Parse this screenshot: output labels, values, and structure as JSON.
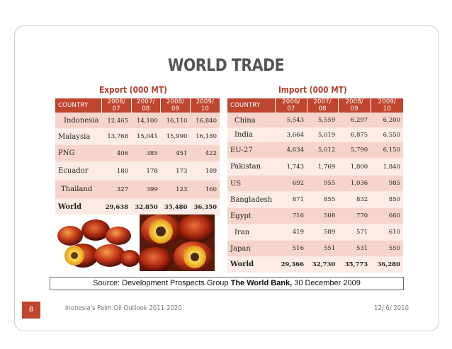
{
  "slide": {
    "title": "WORLD TRADE",
    "page_number": "8",
    "footer_left": "Inonesia's Palm Oil Outlook 2011-2020",
    "footer_right": "12/ 6/ 2010",
    "source": {
      "prefix": "Source: Development Prospects Group ",
      "bold": "The World Bank,",
      "suffix": " 30 December 2009"
    }
  },
  "export": {
    "heading": "Export (000 MT)",
    "columns": [
      "COUNTRY",
      "2006/ 07",
      "2007/ 08",
      "2008/ 09",
      "2009/ 10"
    ],
    "rows": [
      {
        "country": "Indonesia",
        "values": [
          "12,465",
          "14,100",
          "16,110",
          "16,840"
        ]
      },
      {
        "country": "Malaysia",
        "values": [
          "13,768",
          "15,041",
          "15,990",
          "16,180"
        ]
      },
      {
        "country": "PNG",
        "values": [
          "406",
          "385",
          "451",
          "422"
        ]
      },
      {
        "country": "Ecuador",
        "values": [
          "180",
          "178",
          "173",
          "189"
        ]
      },
      {
        "country": "Thailand",
        "values": [
          "327",
          "399",
          "123",
          "160"
        ]
      },
      {
        "country": "World",
        "values": [
          "29,638",
          "32,850",
          "35,480",
          "36,350"
        ]
      }
    ]
  },
  "import": {
    "heading": "Import (000 MT)",
    "columns": [
      "COUNTRY",
      "2006/ 07",
      "2007/ 08",
      "2008/ 09",
      "2009/ 10"
    ],
    "rows": [
      {
        "country": "China",
        "values": [
          "5,543",
          "5,559",
          "6,297",
          "6,200"
        ]
      },
      {
        "country": "India",
        "values": [
          "3,664",
          "5,019",
          "6,875",
          "6,550"
        ]
      },
      {
        "country": "EU-27",
        "values": [
          "4,634",
          "5,012",
          "5,790",
          "6,150"
        ]
      },
      {
        "country": "Pakistan",
        "values": [
          "1,743",
          "1,769",
          "1,800",
          "1,840"
        ]
      },
      {
        "country": "US",
        "values": [
          "692",
          "955",
          "1,036",
          "985"
        ]
      },
      {
        "country": "Bangladesh",
        "values": [
          "871",
          "855",
          "832",
          "850"
        ]
      },
      {
        "country": "Egypt",
        "values": [
          "716",
          "508",
          "770",
          "660"
        ]
      },
      {
        "country": "Iran",
        "values": [
          "419",
          "589",
          "571",
          "610"
        ]
      },
      {
        "country": "Japan",
        "values": [
          "516",
          "551",
          "531",
          "550"
        ]
      },
      {
        "country": "World",
        "values": [
          "29,366",
          "32,730",
          "35,773",
          "36,280"
        ]
      }
    ]
  },
  "colors": {
    "accent": "#c0452f",
    "row_odd": "#f6d4cb",
    "row_even": "#fcebe6"
  }
}
